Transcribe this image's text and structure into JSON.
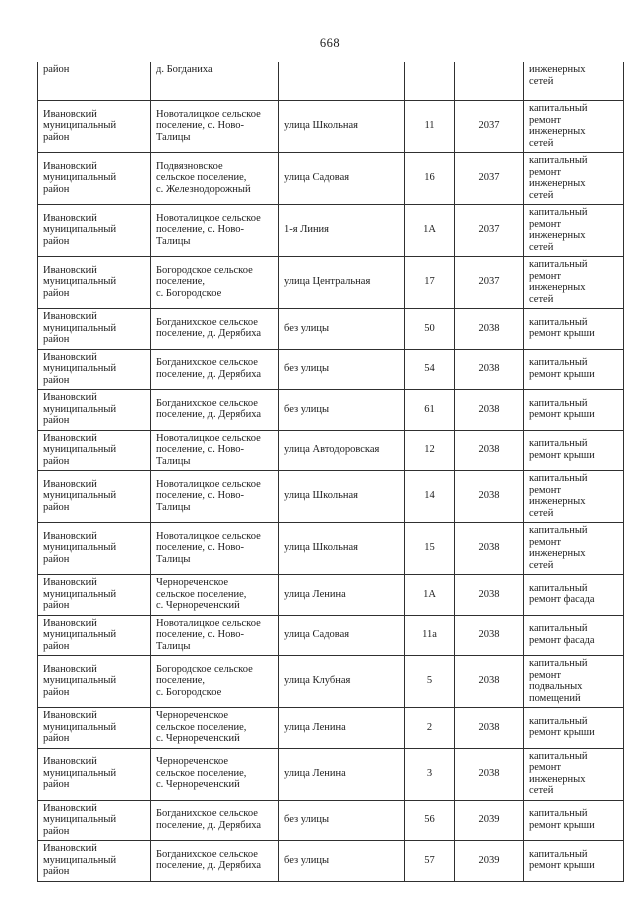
{
  "page": {
    "number": "668",
    "background_color": "#ffffff",
    "text_color": "#1c1c1c",
    "border_color": "#303030"
  },
  "table": {
    "rows": [
      {
        "district": "район",
        "settlement": "д. Богданиха",
        "street": "",
        "house": "",
        "year": "",
        "work": "инженерных\nсетей"
      },
      {
        "district": "Ивановский\nмуниципальный\nрайон",
        "settlement": "Новоталицкое сельское\nпоселение, с. Ново-\nТалицы",
        "street": "улица Школьная",
        "house": "11",
        "year": "2037",
        "work": "капитальный\nремонт\nинженерных\nсетей"
      },
      {
        "district": "Ивановский\nмуниципальный\nрайон",
        "settlement": "Подвязновское\nсельское поселение,\nс. Железнодорожный",
        "street": "улица Садовая",
        "house": "16",
        "year": "2037",
        "work": "капитальный\nремонт\nинженерных\nсетей"
      },
      {
        "district": "Ивановский\nмуниципальный\nрайон",
        "settlement": "Новоталицкое сельское\nпоселение, с. Ново-\nТалицы",
        "street": "1-я Линия",
        "house": "1А",
        "year": "2037",
        "work": "капитальный\nремонт\nинженерных\nсетей"
      },
      {
        "district": "Ивановский\nмуниципальный\nрайон",
        "settlement": "Богородское сельское\nпоселение,\nс. Богородское",
        "street": "улица Центральная",
        "house": "17",
        "year": "2037",
        "work": "капитальный\nремонт\nинженерных\nсетей"
      },
      {
        "district": "Ивановский\nмуниципальный\nрайон",
        "settlement": "Богданихское сельское\nпоселение, д. Дерябиха",
        "street": "без улицы",
        "house": "50",
        "year": "2038",
        "work": "капитальный\nремонт крыши"
      },
      {
        "district": "Ивановский\nмуниципальный\nрайон",
        "settlement": "Богданихское сельское\nпоселение, д. Дерябиха",
        "street": "без улицы",
        "house": "54",
        "year": "2038",
        "work": "капитальный\nремонт крыши"
      },
      {
        "district": "Ивановский\nмуниципальный\nрайон",
        "settlement": "Богданихское сельское\nпоселение, д. Дерябиха",
        "street": "без улицы",
        "house": "61",
        "year": "2038",
        "work": "капитальный\nремонт крыши"
      },
      {
        "district": "Ивановский\nмуниципальный\nрайон",
        "settlement": "Новоталицкое сельское\nпоселение, с. Ново-\nТалицы",
        "street": "улица Автодоровская",
        "house": "12",
        "year": "2038",
        "work": "капитальный\nремонт крыши"
      },
      {
        "district": "Ивановский\nмуниципальный\nрайон",
        "settlement": "Новоталицкое сельское\nпоселение, с. Ново-\nТалицы",
        "street": "улица Школьная",
        "house": "14",
        "year": "2038",
        "work": "капитальный\nремонт\nинженерных\nсетей"
      },
      {
        "district": "Ивановский\nмуниципальный\nрайон",
        "settlement": "Новоталицкое сельское\nпоселение, с. Ново-\nТалицы",
        "street": "улица Школьная",
        "house": "15",
        "year": "2038",
        "work": "капитальный\nремонт\nинженерных\nсетей"
      },
      {
        "district": "Ивановский\nмуниципальный\nрайон",
        "settlement": "Чернореченское\nсельское поселение,\nс. Чернореченский",
        "street": "улица Ленина",
        "house": "1А",
        "year": "2038",
        "work": "капитальный\nремонт фасада"
      },
      {
        "district": "Ивановский\nмуниципальный\nрайон",
        "settlement": "Новоталицкое сельское\nпоселение, с. Ново-\nТалицы",
        "street": "улица Садовая",
        "house": "11а",
        "year": "2038",
        "work": "капитальный\nремонт фасада"
      },
      {
        "district": "Ивановский\nмуниципальный\nрайон",
        "settlement": "Богородское сельское\nпоселение,\nс. Богородское",
        "street": "улица Клубная",
        "house": "5",
        "year": "2038",
        "work": "капитальный\nремонт\nподвальных\nпомещений"
      },
      {
        "district": "Ивановский\nмуниципальный\nрайон",
        "settlement": "Чернореченское\nсельское поселение,\nс. Чернореченский",
        "street": "улица Ленина",
        "house": "2",
        "year": "2038",
        "work": "капитальный\nремонт крыши"
      },
      {
        "district": "Ивановский\nмуниципальный\nрайон",
        "settlement": "Чернореченское\nсельское поселение,\nс. Чернореченский",
        "street": "улица Ленина",
        "house": "3",
        "year": "2038",
        "work": "капитальный\nремонт\nинженерных\nсетей"
      },
      {
        "district": "Ивановский\nмуниципальный\nрайон",
        "settlement": "Богданихское сельское\nпоселение, д. Дерябиха",
        "street": "без улицы",
        "house": "56",
        "year": "2039",
        "work": "капитальный\nремонт крыши"
      },
      {
        "district": "Ивановский\nмуниципальный\nрайон",
        "settlement": "Богданихское сельское\nпоселение, д. Дерябиха",
        "street": "без улицы",
        "house": "57",
        "year": "2039",
        "work": "капитальный\nремонт крыши"
      }
    ]
  }
}
